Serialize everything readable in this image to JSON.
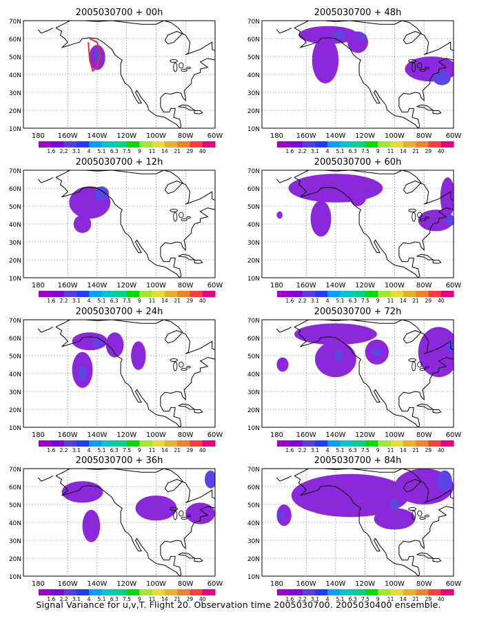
{
  "panels": [
    {
      "title": "2005030700 + 00h",
      "blobs": [
        {
          "lon": -140.0,
          "lat": 49.5,
          "rx": 5.5,
          "ry": 7.0,
          "level": 0
        },
        {
          "lon": -139.5,
          "lat": 50.5,
          "rx": 2.5,
          "ry": 4.0,
          "level": 1
        }
      ],
      "flight_track": [
        [
          -145,
          60
        ],
        [
          -140,
          58
        ],
        [
          -138,
          52
        ],
        [
          -140,
          44
        ],
        [
          -143,
          42
        ],
        [
          -145,
          48
        ],
        [
          -146,
          58
        ]
      ]
    },
    {
      "title": "2005030700 + 48h",
      "blobs": [
        {
          "lon": -145,
          "lat": 62,
          "rx": 20,
          "ry": 5,
          "level": 0
        },
        {
          "lon": -147,
          "lat": 48,
          "rx": 9,
          "ry": 13,
          "level": 0
        },
        {
          "lon": -125,
          "lat": 58,
          "rx": 7,
          "ry": 6,
          "level": 0
        },
        {
          "lon": -75,
          "lat": 43,
          "rx": 18,
          "ry": 7,
          "level": 0
        },
        {
          "lon": -68,
          "lat": 38,
          "rx": 6,
          "ry": 4,
          "level": 1
        },
        {
          "lon": -138,
          "lat": 62,
          "rx": 4,
          "ry": 2.5,
          "level": 1
        },
        {
          "lon": -122,
          "lat": 61,
          "rx": 3,
          "ry": 2,
          "level": 1
        }
      ]
    },
    {
      "title": "2005030700 + 12h",
      "blobs": [
        {
          "lon": -145,
          "lat": 52,
          "rx": 14,
          "ry": 9,
          "level": 0
        },
        {
          "lon": -150,
          "lat": 40,
          "rx": 6,
          "ry": 5,
          "level": 0
        },
        {
          "lon": -137,
          "lat": 57,
          "rx": 5,
          "ry": 4,
          "level": 1
        }
      ]
    },
    {
      "title": "2005030700 + 60h",
      "blobs": [
        {
          "lon": -140,
          "lat": 60,
          "rx": 32,
          "ry": 8,
          "level": 0
        },
        {
          "lon": -150,
          "lat": 43,
          "rx": 7,
          "ry": 10,
          "level": 0
        },
        {
          "lon": -125,
          "lat": 56,
          "rx": 6,
          "ry": 6,
          "level": 0
        },
        {
          "lon": -72,
          "lat": 42,
          "rx": 12,
          "ry": 6,
          "level": 0
        },
        {
          "lon": -64,
          "lat": 55,
          "rx": 5,
          "ry": 11,
          "level": 0
        },
        {
          "lon": -62,
          "lat": 42,
          "rx": 3,
          "ry": 3,
          "level": 1
        },
        {
          "lon": -178,
          "lat": 45,
          "rx": 2,
          "ry": 2,
          "level": 0
        }
      ]
    },
    {
      "title": "2005030700 + 24h",
      "blobs": [
        {
          "lon": -145,
          "lat": 58,
          "rx": 12,
          "ry": 5,
          "level": 0
        },
        {
          "lon": -150,
          "lat": 42,
          "rx": 7,
          "ry": 10,
          "level": 0
        },
        {
          "lon": -128,
          "lat": 56,
          "rx": 6,
          "ry": 7,
          "level": 0
        },
        {
          "lon": -112,
          "lat": 50,
          "rx": 5,
          "ry": 8,
          "level": 0
        },
        {
          "lon": -150,
          "lat": 40,
          "rx": 3,
          "ry": 4,
          "level": 1
        },
        {
          "lon": -140,
          "lat": 57,
          "rx": 3,
          "ry": 2.5,
          "level": 1
        }
      ]
    },
    {
      "title": "2005030700 + 72h",
      "blobs": [
        {
          "lon": -140,
          "lat": 62,
          "rx": 28,
          "ry": 6,
          "level": 0
        },
        {
          "lon": -140,
          "lat": 48,
          "rx": 14,
          "ry": 10,
          "level": 0
        },
        {
          "lon": -112,
          "lat": 52,
          "rx": 8,
          "ry": 7,
          "level": 0
        },
        {
          "lon": -70,
          "lat": 52,
          "rx": 14,
          "ry": 14,
          "level": 0
        },
        {
          "lon": -176,
          "lat": 45,
          "rx": 4,
          "ry": 4,
          "level": 0
        },
        {
          "lon": -138,
          "lat": 50,
          "rx": 3,
          "ry": 3,
          "level": 1
        },
        {
          "lon": -112,
          "lat": 52,
          "rx": 3,
          "ry": 2.5,
          "level": 1
        },
        {
          "lon": -62,
          "lat": 55,
          "rx": 3,
          "ry": 3,
          "level": 1
        }
      ]
    },
    {
      "title": "2005030700 + 36h",
      "blobs": [
        {
          "lon": -150,
          "lat": 57,
          "rx": 14,
          "ry": 6,
          "level": 0
        },
        {
          "lon": -144,
          "lat": 38,
          "rx": 6,
          "ry": 9,
          "level": 0
        },
        {
          "lon": -100,
          "lat": 48,
          "rx": 14,
          "ry": 7,
          "level": 0
        },
        {
          "lon": -70,
          "lat": 45,
          "rx": 10,
          "ry": 6,
          "level": 0
        },
        {
          "lon": -63,
          "lat": 64,
          "rx": 4,
          "ry": 5,
          "level": 1
        }
      ]
    },
    {
      "title": "2005030700 + 84h",
      "blobs": [
        {
          "lon": -130,
          "lat": 55,
          "rx": 40,
          "ry": 12,
          "level": 0
        },
        {
          "lon": -175,
          "lat": 44,
          "rx": 5,
          "ry": 6,
          "level": 0
        },
        {
          "lon": -100,
          "lat": 42,
          "rx": 14,
          "ry": 6,
          "level": 0
        },
        {
          "lon": -80,
          "lat": 60,
          "rx": 20,
          "ry": 10,
          "level": 0
        },
        {
          "lon": -66,
          "lat": 63,
          "rx": 5,
          "ry": 6,
          "level": 1
        },
        {
          "lon": -100,
          "lat": 50,
          "rx": 3,
          "ry": 3,
          "level": 1
        },
        {
          "lon": -177,
          "lat": 44,
          "rx": 2,
          "ry": 2,
          "level": 1
        }
      ]
    }
  ],
  "axes": {
    "lat_labels": [
      "70N",
      "60N",
      "50N",
      "40N",
      "30N",
      "20N",
      "10N"
    ],
    "lon_labels": [
      "180",
      "160W",
      "140W",
      "120W",
      "100W",
      "80W",
      "60W"
    ],
    "lon_range": [
      -190,
      -60
    ],
    "lat_range": [
      10,
      70
    ]
  },
  "colorbar": {
    "labels": [
      "1.6",
      "2.2",
      "3.1",
      "4",
      "5.1",
      "6.3",
      "7.5",
      "9",
      "11",
      "14",
      "21",
      "29",
      "40"
    ],
    "colors": [
      "#a000c8",
      "#8200dc",
      "#5a3cdc",
      "#1e3cff",
      "#00a0ff",
      "#00c8c8",
      "#00d28c",
      "#00dc00",
      "#a0e632",
      "#e6dc32",
      "#e6af2d",
      "#f08228",
      "#fa3c3c",
      "#e60082"
    ]
  },
  "fill_colors": {
    "level0": "#8c28dc",
    "level1": "#5a46e6",
    "land_line": "#000000",
    "track": "#e8283c"
  },
  "caption": "Signal Variance for u,v,T. Flight 20. Observation time 2005030700. 2005030400 ensemble."
}
